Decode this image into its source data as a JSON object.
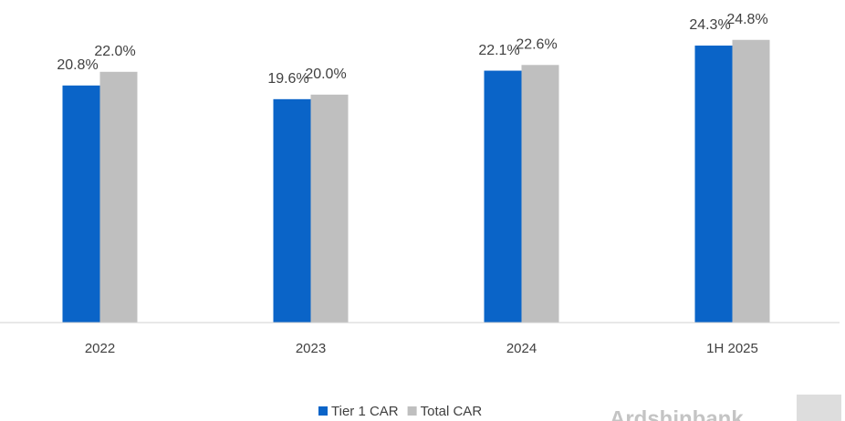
{
  "chart_data": {
    "type": "bar",
    "categories": [
      "2022",
      "2023",
      "2024",
      "1H 2025"
    ],
    "series": [
      {
        "name": "Tier 1 CAR",
        "color": "#0a64c8",
        "values": [
          20.8,
          19.6,
          22.1,
          24.3
        ],
        "value_labels": [
          "20.8%",
          "19.6%",
          "22.1%",
          "24.3%"
        ]
      },
      {
        "name": "Total CAR",
        "color": "#bfbfbf",
        "values": [
          22.0,
          20.0,
          22.6,
          24.8
        ],
        "value_labels": [
          "22.0%",
          "20.0%",
          "22.6%",
          "24.8%"
        ]
      }
    ],
    "ylim": [
      0,
      27.5
    ],
    "legend": "bottom",
    "watermark": "Ardshinbank"
  }
}
